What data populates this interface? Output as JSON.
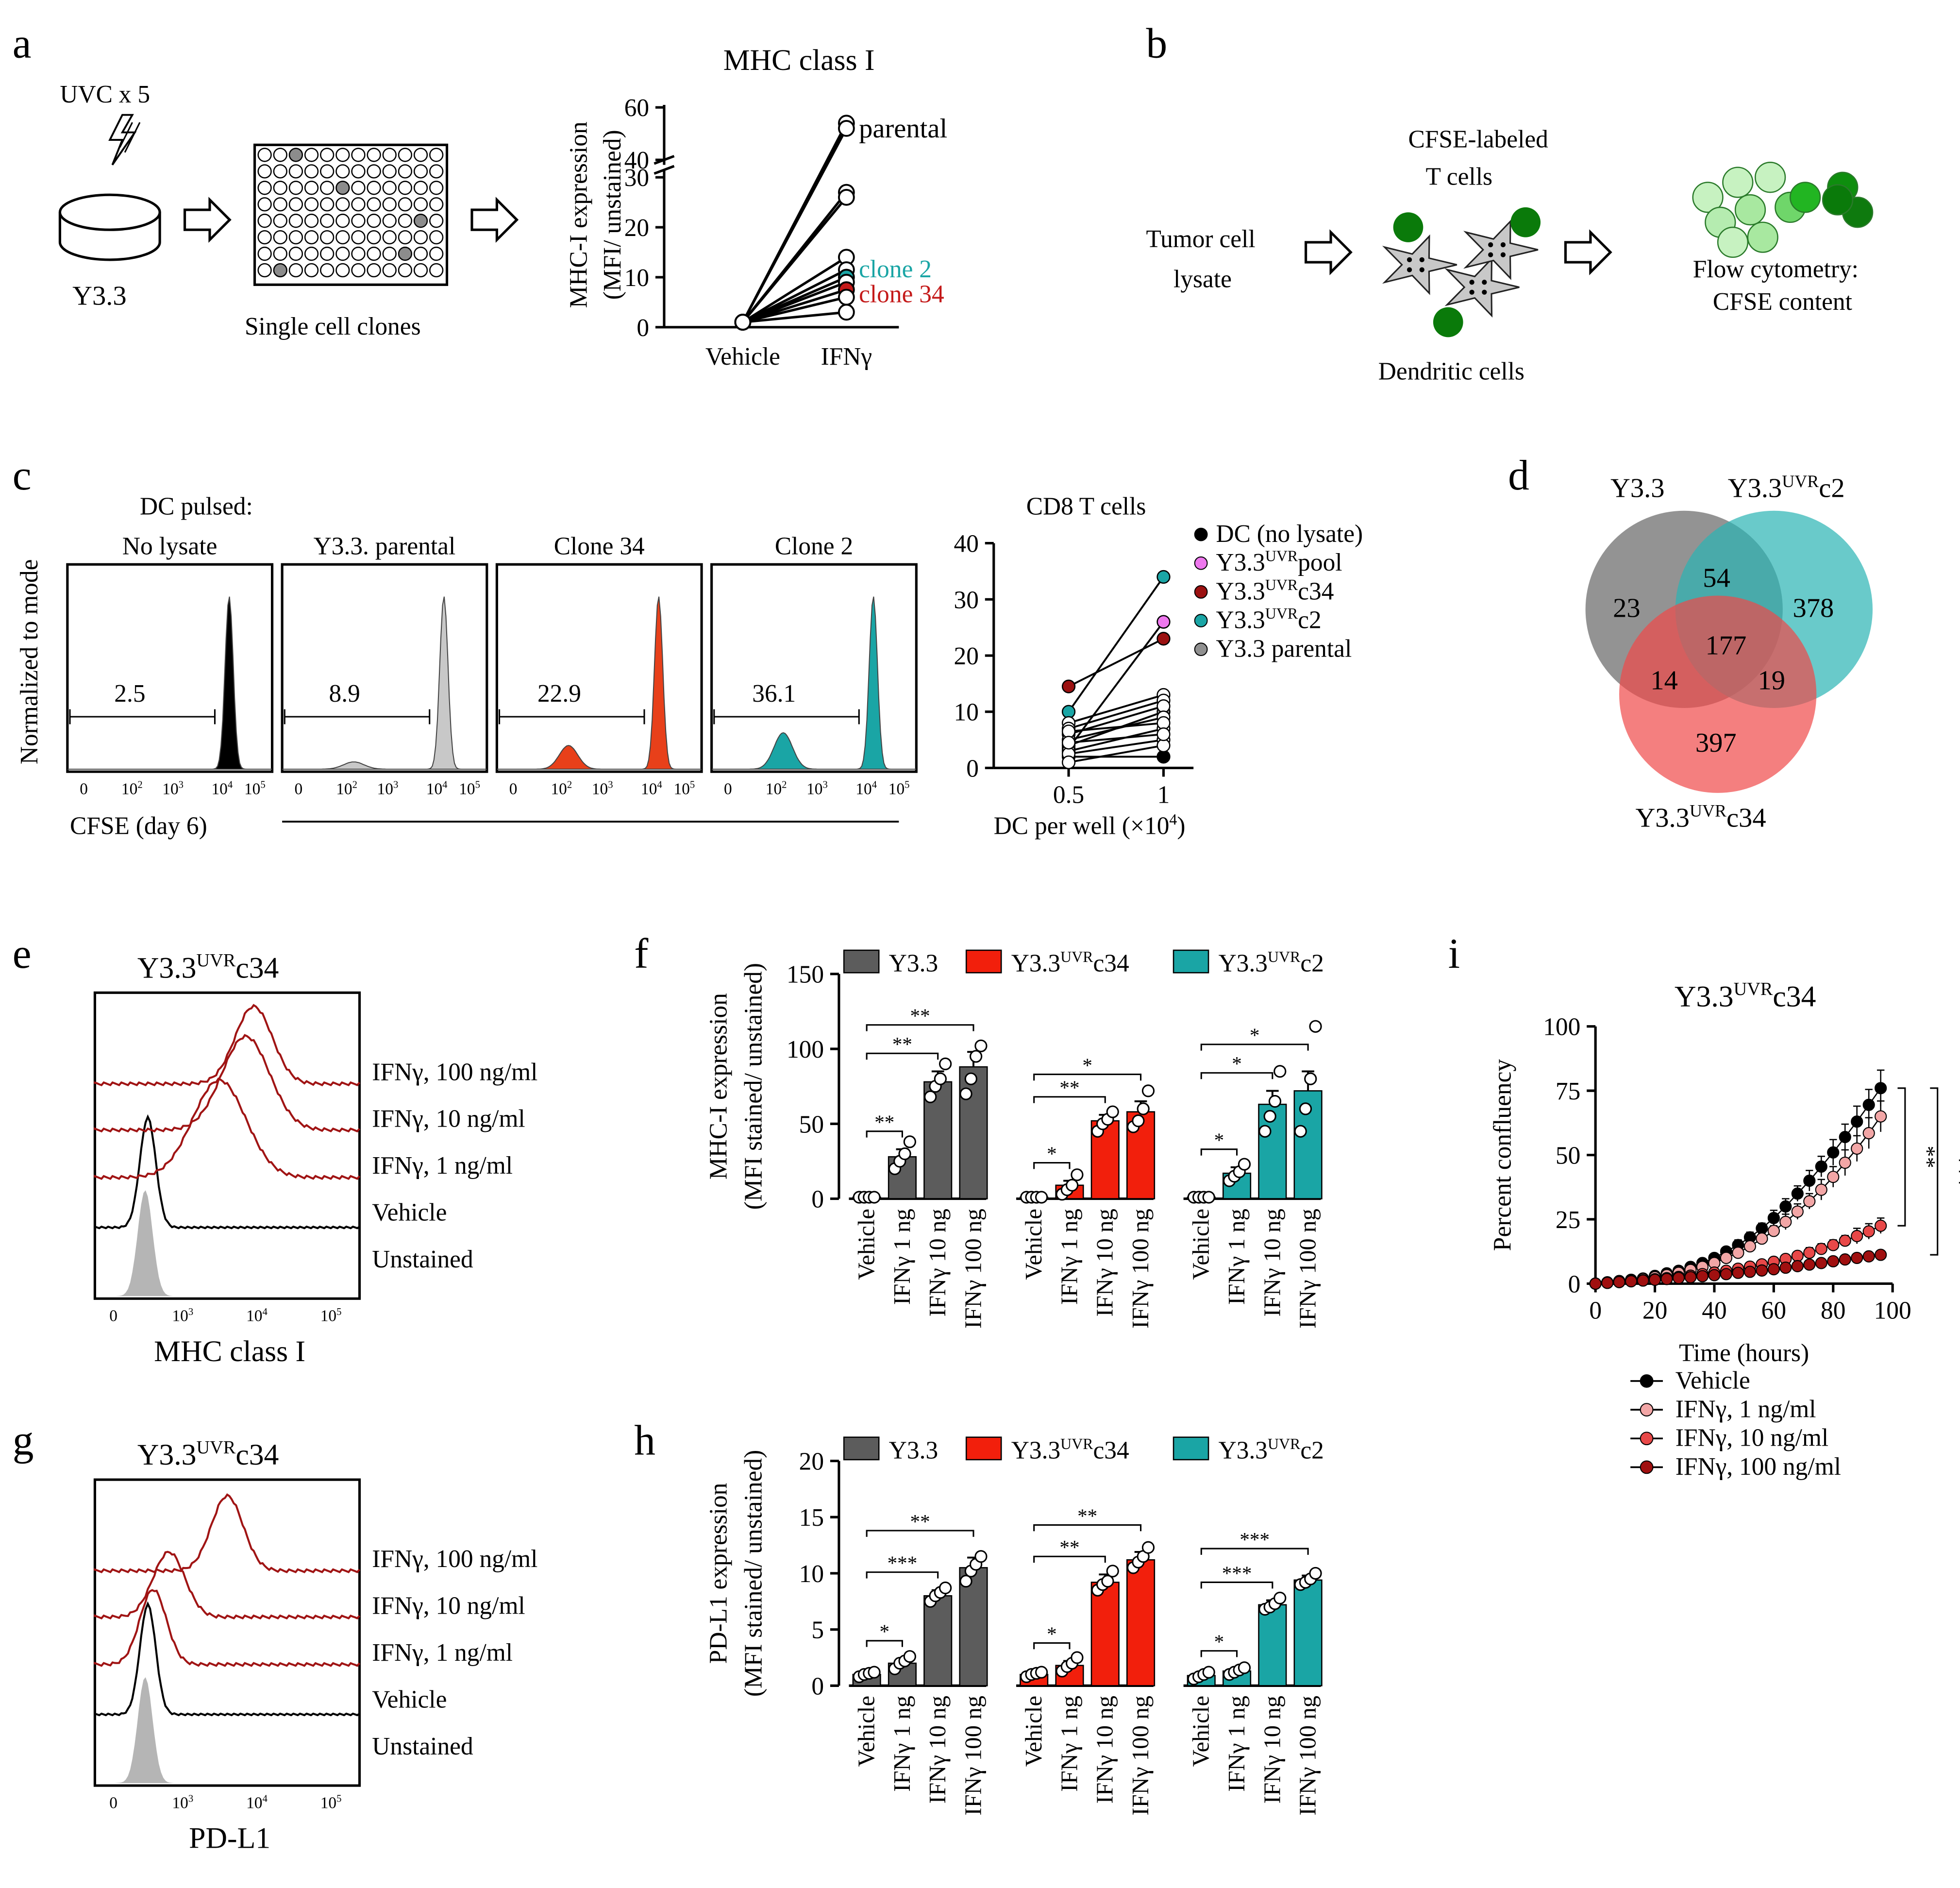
{
  "figure": {
    "title": "Multi-panel figure: UV-induced Y3.3 clones, MHC class I, PD-L1 and growth under IFNγ"
  },
  "panels": {
    "a": "a",
    "b": "b",
    "c": "c",
    "d": "d",
    "e": "e",
    "f": "f",
    "g": "g",
    "h": "h",
    "i": "i"
  },
  "panel_a": {
    "uvc": "UVC x 5",
    "y33": "Y3.3",
    "clones": "Single cell clones"
  },
  "panel_b": {
    "lysate1": "Tumor cell",
    "lysate2": "lysate",
    "tcells1": "CFSE-labeled",
    "tcells2": "T cells",
    "dc": "Dendritic cells",
    "flow1": "Flow cytometry:",
    "flow2": "CFSE content"
  },
  "panel_c": {
    "dc_pulsed": "DC pulsed:",
    "ylabel": "Normalized to mode",
    "xlabel": "CFSE  (day 6)",
    "histograms": [
      {
        "title": "No lysate",
        "gate": "2.5",
        "color": "#000000"
      },
      {
        "title": "Y3.3. parental",
        "gate": "8.9",
        "color": "#c8c8c8"
      },
      {
        "title": "Clone 34",
        "gate": "22.9",
        "color": "#e8401a"
      },
      {
        "title": "Clone 2",
        "gate": "36.1",
        "color": "#1aa5a5"
      }
    ],
    "ticks": [
      "0",
      "10",
      "2",
      "10",
      "3",
      "10",
      "4",
      "10",
      "5"
    ]
  },
  "panel_d": {
    "labels": {
      "y33": "Y3.3",
      "c2_base": "Y3.3",
      "c2_sup": "UVR",
      "c2_sub": "c2",
      "c34_base": "Y3.3",
      "c34_sup": "UVR",
      "c34_sub": "c34"
    },
    "counts": {
      "only_y33": "23",
      "y33_c2": "54",
      "only_c2": "378",
      "all": "177",
      "y33_c34": "14",
      "c2_c34": "19",
      "only_c34": "397"
    }
  },
  "panel_e": {
    "title_base": "Y3.3",
    "title_sup": "UVR",
    "title_sub": "c34",
    "xlabel": "MHC class I",
    "labels": [
      "IFNγ, 100 ng/ml",
      "IFNγ, 10 ng/ml",
      "IFNγ, 1 ng/ml",
      "Vehicle",
      "Unstained"
    ],
    "ticks": [
      "0",
      "10",
      "3",
      "10",
      "4",
      "10",
      "5"
    ]
  },
  "panel_g": {
    "title_base": "Y3.3",
    "title_sup": "UVR",
    "title_sub": "c34",
    "xlabel": "PD-L1",
    "labels": [
      "IFNγ, 100 ng/ml",
      "IFNγ, 10 ng/ml",
      "IFNγ, 1 ng/ml",
      "Vehicle",
      "Unstained"
    ],
    "ticks": [
      "0",
      "10",
      "3",
      "10",
      "4",
      "10",
      "5"
    ]
  },
  "legend_fh": [
    {
      "label": "Y3.3",
      "sup": "",
      "sub": "",
      "color": "#5c5c5c"
    },
    {
      "label": "Y3.3",
      "sup": "UVR",
      "sub": "c34",
      "color": "#f21f0c"
    },
    {
      "label": "Y3.3",
      "sup": "UVR",
      "sub": "c2",
      "color": "#1aa5a5"
    }
  ],
  "panel_i_legend": [
    "Vehicle",
    "IFNγ, 1 ng/ml",
    "IFNγ, 10 ng/ml",
    "IFNγ, 100 ng/ml"
  ],
  "chart_data": [
    {
      "panel": "a",
      "type": "line",
      "title": "MHC class I",
      "ylabel": "MHC-I expression",
      "ylabel2": "(MFI/ unstained)",
      "categories": [
        "Vehicle",
        "IFNγ"
      ],
      "yticks_lower": [
        "0",
        "10",
        "20",
        "30"
      ],
      "yticks_upper": [
        "40",
        "60"
      ],
      "annotations": [
        "parental",
        "clone 2",
        "clone 34"
      ],
      "series": [
        {
          "name": "parental",
          "values": [
            1,
            54
          ],
          "color": "#ffffff"
        },
        {
          "name": "parental",
          "values": [
            1,
            52
          ],
          "color": "#ffffff"
        },
        {
          "name": "clone",
          "values": [
            1,
            27
          ],
          "color": "#ffffff"
        },
        {
          "name": "clone",
          "values": [
            1,
            26
          ],
          "color": "#ffffff"
        },
        {
          "name": "clone",
          "values": [
            1,
            14
          ],
          "color": "#ffffff"
        },
        {
          "name": "clone",
          "values": [
            1,
            11.5
          ],
          "color": "#ffffff"
        },
        {
          "name": "clone 2",
          "values": [
            1,
            10
          ],
          "color": "#1aa5a5"
        },
        {
          "name": "clone",
          "values": [
            1,
            9
          ],
          "color": "#ffffff"
        },
        {
          "name": "clone 34",
          "values": [
            1,
            7.5
          ],
          "color": "#c41a1a"
        },
        {
          "name": "clone",
          "values": [
            1,
            6
          ],
          "color": "#ffffff"
        },
        {
          "name": "clone",
          "values": [
            1,
            3
          ],
          "color": "#ffffff"
        }
      ]
    },
    {
      "panel": "c",
      "type": "scatter",
      "title": "CD8 T cells",
      "xlabel": "DC per well  (×10",
      "xlabel_sup": "4",
      "xlabel_end": ")",
      "categories": [
        "0.5",
        "1"
      ],
      "ylim": [
        0,
        40
      ],
      "yticks": [
        "0",
        "10",
        "20",
        "30",
        "40"
      ],
      "legend": [
        {
          "label": "DC (no lysate)",
          "sup": "",
          "sub": "",
          "color": "#000000"
        },
        {
          "label": "Y3.3",
          "sup": "UVR",
          "sub": "pool",
          "color": "#ee77ee"
        },
        {
          "label": "Y3.3",
          "sup": "UVR",
          "sub": "c34",
          "color": "#9b1111"
        },
        {
          "label": "Y3.3",
          "sup": "UVR",
          "sub": "c2",
          "color": "#1aa5a5"
        },
        {
          "label": "Y3.3 parental",
          "sup": "",
          "sub": "",
          "color": "#909090"
        }
      ],
      "pairs": [
        {
          "values": [
            2,
            2
          ],
          "color": "#000000"
        },
        {
          "values": [
            3.5,
            26
          ],
          "color": "#ee77ee"
        },
        {
          "values": [
            14.5,
            23
          ],
          "color": "#9b1111"
        },
        {
          "values": [
            10,
            34
          ],
          "color": "#1aa5a5"
        },
        {
          "values": [
            4,
            10
          ],
          "color": "#909090"
        },
        {
          "values": [
            8,
            13
          ],
          "color": "#ffffff"
        },
        {
          "values": [
            7,
            12
          ],
          "color": "#ffffff"
        },
        {
          "values": [
            6,
            11
          ],
          "color": "#ffffff"
        },
        {
          "values": [
            5,
            9
          ],
          "color": "#ffffff"
        },
        {
          "values": [
            3,
            7
          ],
          "color": "#ffffff"
        },
        {
          "values": [
            2.5,
            5
          ],
          "color": "#ffffff"
        },
        {
          "values": [
            1,
            4
          ],
          "color": "#ffffff"
        },
        {
          "values": [
            6.5,
            8
          ],
          "color": "#ffffff"
        },
        {
          "values": [
            4.5,
            6
          ],
          "color": "#ffffff"
        }
      ]
    },
    {
      "panel": "f",
      "type": "bar",
      "ylabel": "MHC-I expression",
      "ylabel2": "(MFI stained/ unstained)",
      "ylim": [
        0,
        150
      ],
      "yticks": [
        "0",
        "50",
        "100",
        "150"
      ],
      "categories": [
        "Vehicle",
        "IFNγ 1 ng",
        "IFNγ 10 ng",
        "IFNγ 100 ng"
      ],
      "groups": [
        {
          "name": "Y3.3",
          "color": "#5c5c5c",
          "values": [
            1,
            28,
            78,
            88
          ],
          "err": [
            0,
            5,
            7,
            10
          ],
          "points": [
            [
              1,
              1,
              1,
              1
            ],
            [
              20,
              25,
              30,
              38
            ],
            [
              68,
              75,
              80,
              90
            ],
            [
              70,
              80,
              95,
              102
            ]
          ]
        },
        {
          "name": "Y3.3UVRc34",
          "color": "#f21f0c",
          "values": [
            1,
            9,
            52,
            58
          ],
          "err": [
            0,
            3,
            4,
            7
          ],
          "points": [
            [
              1,
              1,
              1,
              1
            ],
            [
              3,
              6,
              9,
              16
            ],
            [
              45,
              50,
              53,
              58
            ],
            [
              48,
              52,
              60,
              72
            ]
          ]
        },
        {
          "name": "Y3.3UVRc2",
          "color": "#1aa5a5",
          "values": [
            1,
            17,
            63,
            72
          ],
          "err": [
            0,
            4,
            9,
            13
          ],
          "points": [
            [
              1,
              1,
              1,
              1
            ],
            [
              12,
              15,
              18,
              23
            ],
            [
              45,
              55,
              65,
              85
            ],
            [
              45,
              60,
              80,
              115
            ]
          ]
        }
      ],
      "sig": [
        [
          "**",
          "**",
          "**"
        ],
        [
          "*",
          "**",
          "*"
        ],
        [
          "*",
          "*",
          "*"
        ]
      ]
    },
    {
      "panel": "h",
      "type": "bar",
      "ylabel": "PD-L1 expression",
      "ylabel2": "(MFI stained/ unstained)",
      "ylim": [
        0,
        20
      ],
      "yticks": [
        "0",
        "5",
        "10",
        "15",
        "20"
      ],
      "categories": [
        "Vehicle",
        "IFNγ 1 ng",
        "IFNγ 10 ng",
        "IFNγ 100 ng"
      ],
      "groups": [
        {
          "name": "Y3.3",
          "color": "#5c5c5c",
          "values": [
            1,
            2,
            8,
            10.5
          ],
          "err": [
            0.2,
            0.4,
            0.5,
            0.9
          ],
          "points": [
            [
              0.8,
              1,
              1.1,
              1.2
            ],
            [
              1.5,
              2,
              2.2,
              2.6
            ],
            [
              7.5,
              8,
              8.3,
              8.7
            ],
            [
              9.3,
              10.2,
              10.8,
              11.5
            ]
          ]
        },
        {
          "name": "Y3.3UVRc34",
          "color": "#f21f0c",
          "values": [
            1,
            1.8,
            9.2,
            11.2
          ],
          "err": [
            0.2,
            0.4,
            0.7,
            0.7
          ],
          "points": [
            [
              0.8,
              1,
              1.1,
              1.2
            ],
            [
              1.3,
              1.7,
              2,
              2.5
            ],
            [
              8.5,
              9,
              9.3,
              10.2
            ],
            [
              10.5,
              11,
              11.5,
              12.3
            ]
          ]
        },
        {
          "name": "Y3.3UVRc2",
          "color": "#1aa5a5",
          "values": [
            0.9,
            1.3,
            7.2,
            9.4
          ],
          "err": [
            0.2,
            0.2,
            0.4,
            0.4
          ],
          "points": [
            [
              0.6,
              0.8,
              1,
              1.2
            ],
            [
              1,
              1.2,
              1.4,
              1.6
            ],
            [
              6.8,
              7,
              7.3,
              7.8
            ],
            [
              9,
              9.2,
              9.5,
              10
            ]
          ]
        }
      ],
      "sig": [
        [
          "*",
          "***",
          "**"
        ],
        [
          "*",
          "**",
          "**"
        ],
        [
          "*",
          "***",
          "***"
        ]
      ]
    },
    {
      "panel": "i",
      "type": "line",
      "title_base": "Y3.3",
      "title_sup": "UVR",
      "title_sub": "c34",
      "xlabel": "Time (hours)",
      "ylabel": "Percent confluency",
      "xlim": [
        0,
        100
      ],
      "ylim": [
        0,
        100
      ],
      "xticks": [
        "0",
        "20",
        "40",
        "60",
        "80",
        "100"
      ],
      "yticks": [
        "0",
        "25",
        "50",
        "75",
        "100"
      ],
      "significance": [
        "**",
        "***"
      ],
      "x": [
        0,
        4,
        8,
        12,
        16,
        20,
        24,
        28,
        32,
        36,
        40,
        44,
        48,
        52,
        56,
        60,
        64,
        68,
        72,
        76,
        80,
        84,
        88,
        92,
        96
      ],
      "series": [
        {
          "name": "Vehicle",
          "color": "#000000",
          "values": [
            0,
            0.5,
            1,
            1.5,
            2,
            3,
            4,
            5,
            6.5,
            8,
            10,
            12.5,
            15,
            18,
            21.5,
            25.5,
            30,
            35,
            40,
            45.5,
            51,
            57,
            63,
            69.5,
            76
          ],
          "err": [
            0,
            0,
            0,
            0,
            0,
            0,
            0,
            0,
            0,
            0,
            1,
            1,
            2,
            2,
            2,
            3,
            3,
            3,
            4,
            4,
            5,
            5,
            6,
            6,
            7
          ]
        },
        {
          "name": "IFNγ, 1 ng/ml",
          "color": "#f2a6a6",
          "values": [
            0,
            0.5,
            1,
            1.3,
            1.8,
            2.5,
            3.3,
            4.2,
            5.3,
            6.5,
            8,
            10,
            12,
            14.5,
            17.5,
            20.5,
            24,
            28,
            32,
            36.5,
            41.5,
            47,
            52.5,
            58.5,
            65
          ],
          "err": [
            0,
            0,
            0,
            0,
            0,
            0,
            0,
            0,
            0,
            0,
            1,
            1,
            1,
            2,
            2,
            2,
            3,
            3,
            3,
            4,
            4,
            5,
            5,
            6,
            6
          ]
        },
        {
          "name": "IFNγ, 10 ng/ml",
          "color": "#e84848",
          "values": [
            0,
            0.3,
            0.6,
            1,
            1.3,
            1.7,
            2.1,
            2.6,
            3.1,
            3.7,
            4.3,
            5,
            5.8,
            6.6,
            7.5,
            8.5,
            9.6,
            10.8,
            12,
            13.5,
            15,
            16.7,
            18.5,
            20.3,
            22.5
          ],
          "err": [
            0,
            0,
            0,
            0,
            0,
            0,
            0,
            0,
            0,
            0,
            0,
            0,
            1,
            1,
            1,
            1,
            1,
            1,
            2,
            2,
            2,
            2,
            3,
            3,
            3
          ]
        },
        {
          "name": "IFNγ, 100 ng/ml",
          "color": "#a01010",
          "values": [
            0,
            0.3,
            0.6,
            0.9,
            1.2,
            1.5,
            1.8,
            2.2,
            2.5,
            2.9,
            3.3,
            3.7,
            4.2,
            4.6,
            5.1,
            5.6,
            6.2,
            6.8,
            7.4,
            8,
            8.7,
            9.4,
            10,
            10.6,
            11.2
          ],
          "err": [
            0,
            0,
            0,
            0,
            0,
            0,
            0,
            0,
            0,
            0,
            0,
            0,
            0,
            0,
            0,
            0,
            0,
            1,
            1,
            1,
            1,
            1,
            1,
            1,
            1
          ]
        }
      ]
    }
  ]
}
